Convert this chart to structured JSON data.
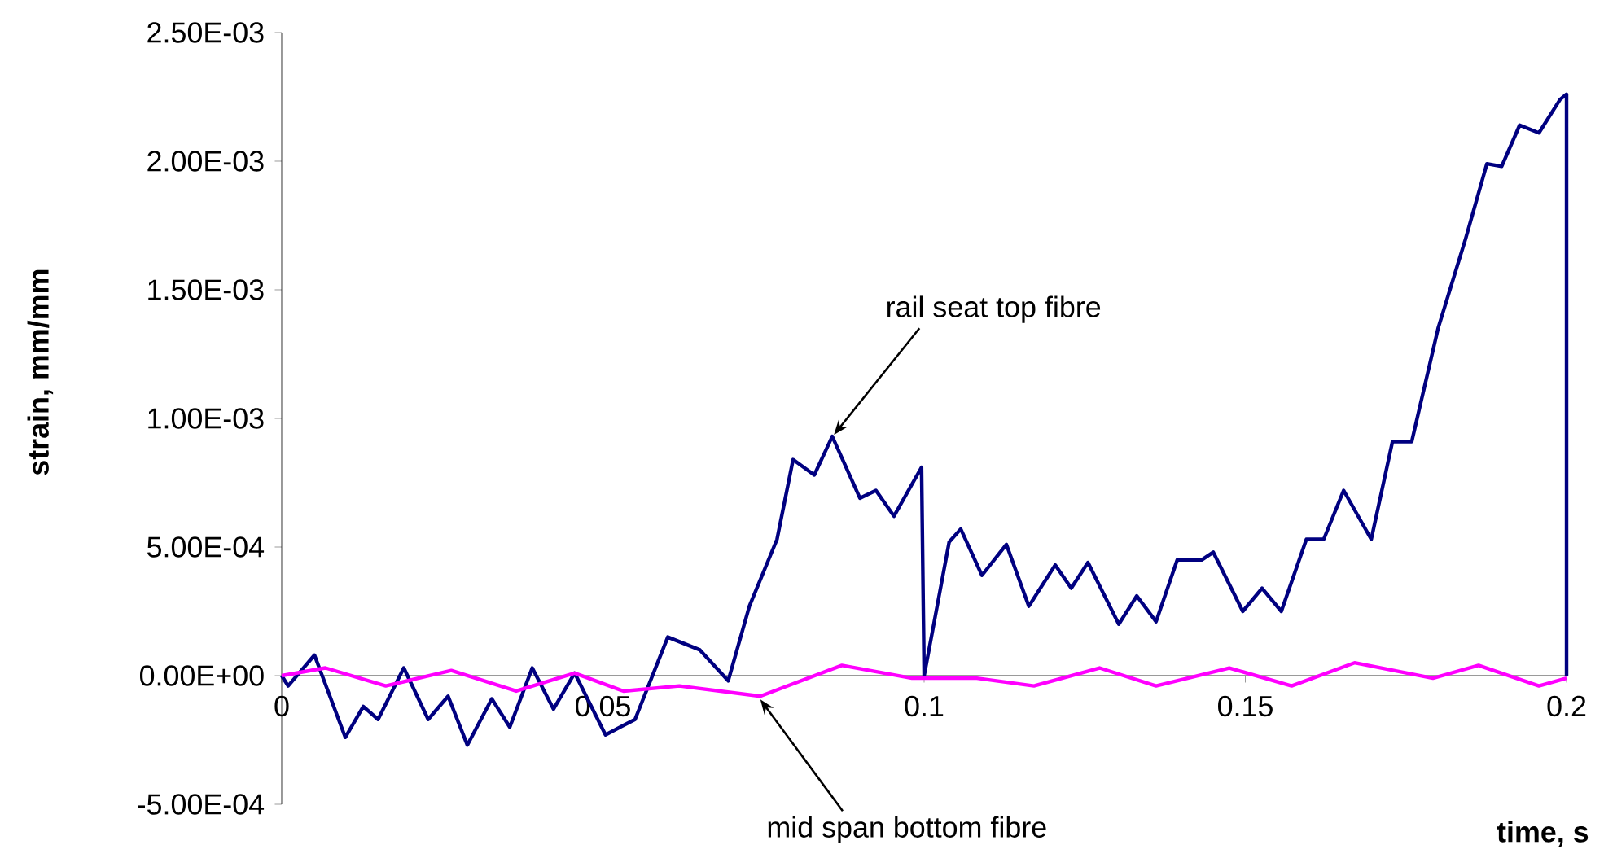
{
  "chart_data": {
    "type": "line",
    "xlabel": "time, s",
    "ylabel": "strain, mm/mm",
    "xlim": [
      0,
      0.2
    ],
    "ylim": [
      -0.0005,
      0.0025
    ],
    "xticks": [
      0,
      0.05,
      0.1,
      0.15,
      0.2
    ],
    "yticks": [
      {
        "value": -0.0005,
        "label": "-5.00E-04"
      },
      {
        "value": 0,
        "label": "0.00E+00"
      },
      {
        "value": 0.0005,
        "label": "5.00E-04"
      },
      {
        "value": 0.001,
        "label": "1.00E-03"
      },
      {
        "value": 0.0015,
        "label": "1.50E-03"
      },
      {
        "value": 0.002,
        "label": "2.00E-03"
      },
      {
        "value": 0.0025,
        "label": "2.50E-03"
      }
    ],
    "marker": "none",
    "line_style": "solid",
    "series": [
      {
        "color": "#000080",
        "x": [
          0,
          0.001,
          0.0051,
          0.0099,
          0.0127,
          0.015,
          0.019,
          0.0228,
          0.0259,
          0.0289,
          0.0327,
          0.0355,
          0.039,
          0.0423,
          0.0456,
          0.0504,
          0.055,
          0.0601,
          0.0651,
          0.0695,
          0.0728,
          0.0771,
          0.0796,
          0.0829,
          0.0857,
          0.09,
          0.0925,
          0.0953,
          0.0996,
          0.1,
          0.1039,
          0.1057,
          0.109,
          0.1128,
          0.1163,
          0.1204,
          0.1229,
          0.1255,
          0.1303,
          0.1331,
          0.1361,
          0.1394,
          0.1432,
          0.145,
          0.1496,
          0.1526,
          0.1556,
          0.1595,
          0.1622,
          0.1653,
          0.1696,
          0.1729,
          0.1759,
          0.18,
          0.1843,
          0.1876,
          0.1899,
          0.1927,
          0.1957,
          0.199,
          0.2,
          0.2
        ],
        "values": [
          0,
          -4e-05,
          8e-05,
          -0.00024,
          -0.00012,
          -0.00017,
          3e-05,
          -0.00017,
          -8e-05,
          -0.00027,
          -9e-05,
          -0.0002,
          3e-05,
          -0.00013,
          1e-05,
          -0.00023,
          -0.00017,
          0.00015,
          0.0001,
          -2e-05,
          0.00027,
          0.00053,
          0.00084,
          0.00078,
          0.00093,
          0.00069,
          0.00072,
          0.00062,
          0.00081,
          0,
          0.00052,
          0.00057,
          0.00039,
          0.00051,
          0.00027,
          0.00043,
          0.00034,
          0.00044,
          0.0002,
          0.00031,
          0.00021,
          0.00045,
          0.00045,
          0.00048,
          0.00025,
          0.00034,
          0.00025,
          0.00053,
          0.00053,
          0.00072,
          0.00053,
          0.00091,
          0.00091,
          0.00135,
          0.0017,
          0.00199,
          0.00198,
          0.00214,
          0.00211,
          0.00224,
          0.00226,
          0
        ]
      },
      {
        "color": "#ff00ff",
        "x": [
          0,
          0.0068,
          0.0162,
          0.0264,
          0.0365,
          0.0456,
          0.0532,
          0.0619,
          0.0745,
          0.0872,
          0.0981,
          0.1082,
          0.1171,
          0.1273,
          0.1361,
          0.1475,
          0.1572,
          0.167,
          0.1792,
          0.1863,
          0.1957,
          0.2
        ],
        "values": [
          0,
          3e-05,
          -4e-05,
          2e-05,
          -6e-05,
          1e-05,
          -6e-05,
          -4e-05,
          -8e-05,
          4e-05,
          -1e-05,
          -1e-05,
          -4e-05,
          3e-05,
          -4e-05,
          3e-05,
          -4e-05,
          5e-05,
          -1e-05,
          4e-05,
          -4e-05,
          -1e-05
        ]
      }
    ],
    "annotations": [
      {
        "text": "rail seat top fibre",
        "x": 0.0857,
        "y": 0.00093
      },
      {
        "text": "mid span bottom fibre",
        "x": 0.0745,
        "y": -8e-05
      }
    ]
  }
}
